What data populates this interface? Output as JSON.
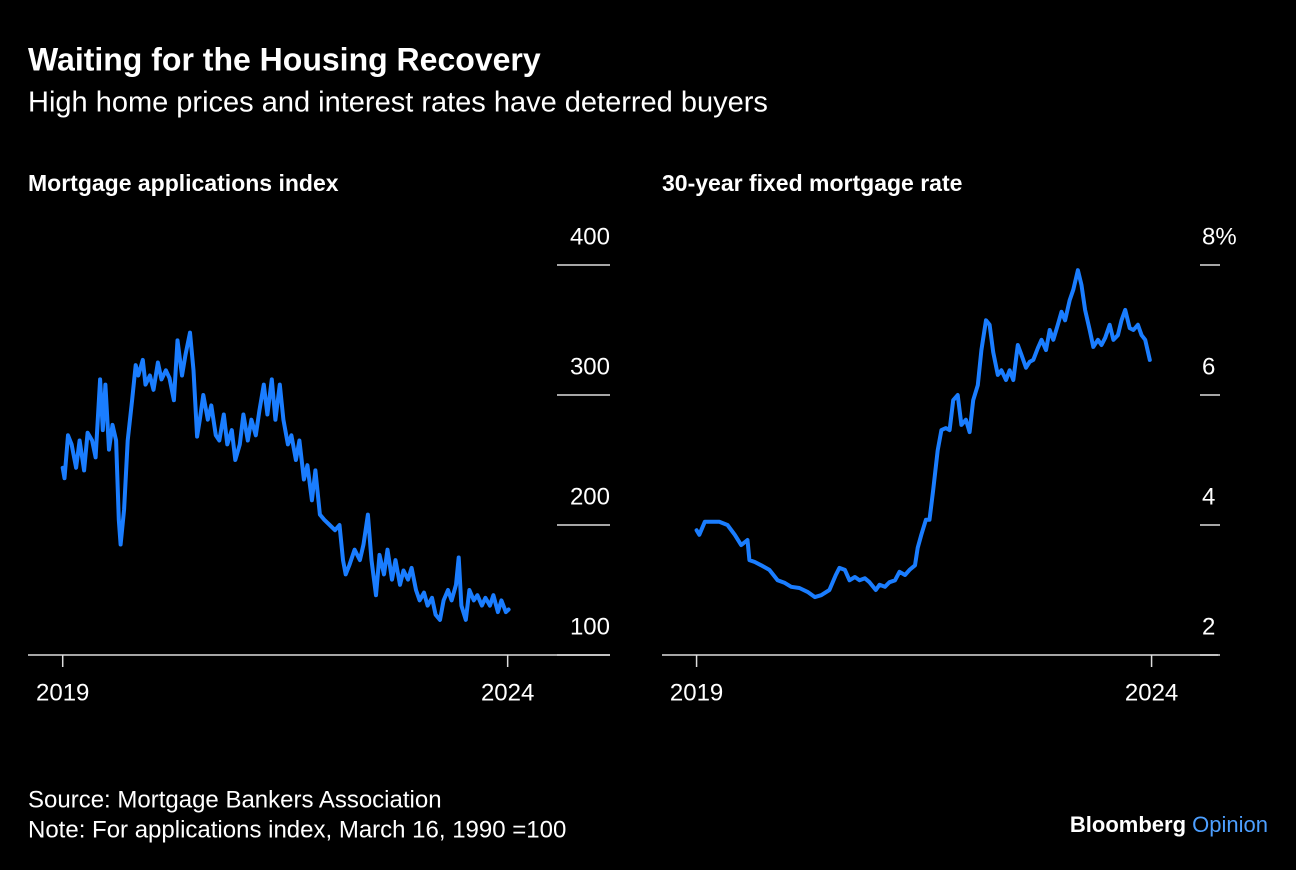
{
  "title": "Waiting for the Housing Recovery",
  "subtitle": "High home prices and interest rates have deterred buyers",
  "source": "Source: Mortgage Bankers Association",
  "note": "Note: For applications index, March 16, 1990 =100",
  "brand": {
    "name": "Bloomberg",
    "suffix": "Opinion"
  },
  "chart_data": [
    {
      "type": "line",
      "title": "Mortgage applications index",
      "color": "#1a7dff",
      "x": [
        2019.0,
        2019.02,
        2019.06,
        2019.1,
        2019.15,
        2019.19,
        2019.24,
        2019.28,
        2019.33,
        2019.37,
        2019.42,
        2019.45,
        2019.48,
        2019.52,
        2019.56,
        2019.6,
        2019.63,
        2019.65,
        2019.69,
        2019.73,
        2019.78,
        2019.82,
        2019.85,
        2019.9,
        2019.93,
        2019.98,
        2020.02,
        2020.07,
        2020.11,
        2020.16,
        2020.2,
        2020.25,
        2020.29,
        2020.34,
        2020.38,
        2020.43,
        2020.47,
        2020.51,
        2020.54,
        2020.58,
        2020.63,
        2020.67,
        2020.72,
        2020.76,
        2020.81,
        2020.85,
        2020.9,
        2020.94,
        2020.99,
        2021.03,
        2021.08,
        2021.12,
        2021.17,
        2021.21,
        2021.26,
        2021.3,
        2021.35,
        2021.39,
        2021.44,
        2021.48,
        2021.53,
        2021.57,
        2021.62,
        2021.66,
        2021.71,
        2021.75,
        2021.8,
        2021.84,
        2021.89,
        2021.94,
        2022.0,
        2022.06,
        2022.11,
        2022.15,
        2022.18,
        2022.22,
        2022.28,
        2022.34,
        2022.38,
        2022.43,
        2022.47,
        2022.52,
        2022.56,
        2022.61,
        2022.65,
        2022.7,
        2022.74,
        2022.79,
        2022.83,
        2022.88,
        2022.92,
        2022.97,
        2023.01,
        2023.06,
        2023.1,
        2023.15,
        2023.19,
        2023.24,
        2023.28,
        2023.33,
        2023.37,
        2023.42,
        2023.45,
        2023.48,
        2023.53,
        2023.57,
        2023.62,
        2023.66,
        2023.71,
        2023.75,
        2023.8,
        2023.84,
        2023.89,
        2023.93,
        2023.98,
        2024.01
      ],
      "values": [
        244,
        236,
        269,
        262,
        244,
        265,
        242,
        271,
        265,
        252,
        312,
        273,
        308,
        258,
        277,
        265,
        204,
        185,
        212,
        265,
        296,
        323,
        315,
        327,
        308,
        315,
        304,
        325,
        312,
        319,
        313,
        296,
        342,
        315,
        331,
        348,
        319,
        268,
        281,
        300,
        281,
        292,
        269,
        265,
        285,
        262,
        273,
        250,
        262,
        285,
        265,
        281,
        269,
        288,
        308,
        285,
        312,
        281,
        308,
        281,
        262,
        269,
        250,
        265,
        235,
        246,
        219,
        242,
        208,
        204,
        200,
        196,
        200,
        173,
        162,
        169,
        181,
        173,
        185,
        208,
        173,
        146,
        177,
        162,
        181,
        158,
        173,
        154,
        165,
        158,
        167,
        150,
        142,
        148,
        138,
        144,
        131,
        127,
        142,
        150,
        142,
        154,
        175,
        138,
        127,
        150,
        142,
        146,
        138,
        144,
        138,
        146,
        133,
        142,
        133,
        135
      ],
      "xlim": [
        2018.61,
        2025.15
      ],
      "xticks": [
        2019,
        2024
      ],
      "ylim": [
        100,
        400
      ],
      "yticks": [
        100,
        200,
        300,
        400
      ]
    },
    {
      "type": "line",
      "title": "30-year fixed mortgage rate",
      "color": "#1a7dff",
      "x": [
        2019.0,
        2019.03,
        2019.09,
        2019.16,
        2019.25,
        2019.34,
        2019.42,
        2019.49,
        2019.56,
        2019.58,
        2019.64,
        2019.71,
        2019.8,
        2019.89,
        2019.97,
        2020.04,
        2020.13,
        2020.22,
        2020.3,
        2020.37,
        2020.46,
        2020.53,
        2020.57,
        2020.63,
        2020.68,
        2020.74,
        2020.79,
        2020.85,
        2020.9,
        2020.97,
        2021.01,
        2021.07,
        2021.12,
        2021.18,
        2021.23,
        2021.29,
        2021.34,
        2021.4,
        2021.43,
        2021.47,
        2021.52,
        2021.56,
        2021.6,
        2021.65,
        2021.69,
        2021.74,
        2021.78,
        2021.82,
        2021.87,
        2021.91,
        2021.96,
        2022.0,
        2022.04,
        2022.09,
        2022.13,
        2022.18,
        2022.22,
        2022.26,
        2022.31,
        2022.35,
        2022.4,
        2022.44,
        2022.48,
        2022.53,
        2022.57,
        2022.62,
        2022.66,
        2022.7,
        2022.75,
        2022.79,
        2022.84,
        2022.88,
        2022.92,
        2022.97,
        2023.01,
        2023.05,
        2023.1,
        2023.14,
        2023.19,
        2023.23,
        2023.27,
        2023.32,
        2023.36,
        2023.41,
        2023.45,
        2023.49,
        2023.54,
        2023.58,
        2023.63,
        2023.67,
        2023.71,
        2023.76,
        2023.8,
        2023.85,
        2023.89,
        2023.93,
        2023.98
      ],
      "values": [
        3.92,
        3.85,
        4.05,
        4.05,
        4.05,
        4.0,
        3.85,
        3.69,
        3.77,
        3.46,
        3.43,
        3.38,
        3.31,
        3.15,
        3.11,
        3.05,
        3.03,
        2.97,
        2.89,
        2.92,
        3.0,
        3.23,
        3.34,
        3.31,
        3.15,
        3.2,
        3.15,
        3.18,
        3.12,
        3.0,
        3.08,
        3.05,
        3.12,
        3.15,
        3.28,
        3.23,
        3.31,
        3.38,
        3.65,
        3.85,
        4.08,
        4.08,
        4.54,
        5.15,
        5.46,
        5.49,
        5.46,
        5.92,
        6.0,
        5.54,
        5.62,
        5.43,
        5.92,
        6.15,
        6.69,
        7.15,
        7.08,
        6.66,
        6.31,
        6.38,
        6.23,
        6.38,
        6.23,
        6.77,
        6.62,
        6.42,
        6.51,
        6.54,
        6.72,
        6.85,
        6.69,
        7.0,
        6.85,
        7.08,
        7.28,
        7.15,
        7.46,
        7.62,
        7.92,
        7.69,
        7.31,
        7.0,
        6.74,
        6.85,
        6.77,
        6.88,
        7.08,
        6.85,
        6.92,
        7.15,
        7.31,
        7.03,
        7.0,
        7.08,
        6.92,
        6.85,
        6.54
      ],
      "xlim": [
        2018.62,
        2024.73
      ],
      "xticks": [
        2019,
        2024
      ],
      "ylim": [
        2,
        8
      ],
      "yticks": [
        2,
        4,
        6,
        {
          "value": 8,
          "label": "8%"
        }
      ]
    }
  ]
}
